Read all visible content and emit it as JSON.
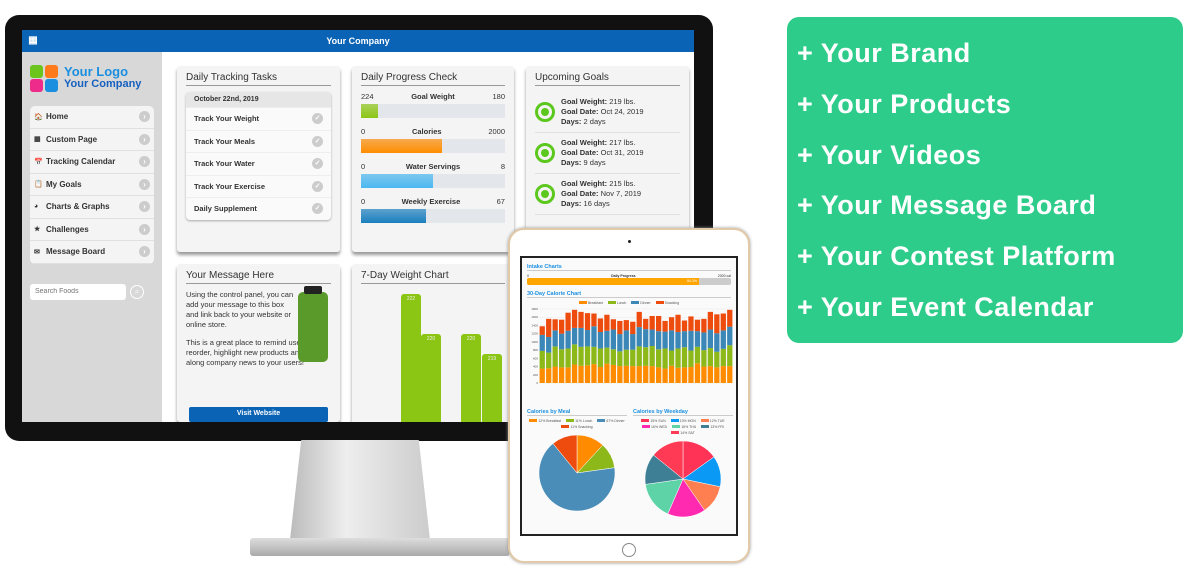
{
  "app": {
    "title": "Your Company",
    "menu_icon": "grid-icon"
  },
  "logo": {
    "line1": "Your Logo",
    "line2": "Your Company"
  },
  "sidebar": {
    "items": [
      {
        "label": "Home",
        "icon": "home-icon"
      },
      {
        "label": "Custom Page",
        "icon": "page-icon"
      },
      {
        "label": "Tracking Calendar",
        "icon": "calendar-icon"
      },
      {
        "label": "My Goals",
        "icon": "clipboard-icon"
      },
      {
        "label": "Charts & Graphs",
        "icon": "pie-chart-icon"
      },
      {
        "label": "Challenges",
        "icon": "star-icon"
      },
      {
        "label": "Message Board",
        "icon": "chat-icon"
      }
    ],
    "search_placeholder": "Search Foods"
  },
  "tasks": {
    "title": "Daily Tracking Tasks",
    "date": "October 22nd, 2019",
    "items": [
      "Track Your Weight",
      "Track Your Meals",
      "Track Your Water",
      "Track Your Exercise",
      "Daily Supplement"
    ]
  },
  "progress": {
    "title": "Daily Progress Check",
    "items": [
      {
        "label": "Goal Weight",
        "min": "224",
        "max": "180",
        "fraction": 0.12,
        "color": "#8cc614"
      },
      {
        "label": "Calories",
        "min": "0",
        "max": "2000",
        "fraction": 0.56,
        "color": "#ff8c00"
      },
      {
        "label": "Water Servings",
        "min": "0",
        "max": "8",
        "fraction": 0.5,
        "color": "#4ab8f0"
      },
      {
        "label": "Weekly Exercise",
        "min": "0",
        "max": "67",
        "fraction": 0.45,
        "color": "#1a7fbf"
      }
    ]
  },
  "goals": {
    "title": "Upcoming Goals",
    "items": [
      {
        "weight_label": "Goal Weight:",
        "weight": "219 lbs.",
        "date_label": "Goal Date:",
        "date": "Oct 24, 2019",
        "days_label": "Days:",
        "days": "2 days"
      },
      {
        "weight_label": "Goal Weight:",
        "weight": "217 lbs.",
        "date_label": "Goal Date:",
        "date": "Oct 31, 2019",
        "days_label": "Days:",
        "days": "9 days"
      },
      {
        "weight_label": "Goal Weight:",
        "weight": "215 lbs.",
        "date_label": "Goal Date:",
        "date": "Nov 7, 2019",
        "days_label": "Days:",
        "days": "16 days"
      }
    ]
  },
  "message": {
    "title": "Your Message Here",
    "p1": "Using the control panel, you can add your message to this box and link back to your website or online store.",
    "p2": "This is a great place to remind users to reorder, highlight new products and pass along company news to your users!",
    "button": "Visit Website"
  },
  "weight_chart": {
    "title": "7-Day Weight Chart",
    "bars": [
      {
        "value": 222,
        "label": "222"
      },
      {
        "value": 220,
        "label": "220"
      },
      {
        "value": 220,
        "label": "220"
      },
      {
        "value": 219,
        "label": "219"
      }
    ]
  },
  "tablet": {
    "intake_title": "Intake Charts",
    "daily_label": "Daily Progress",
    "daily_min": "0",
    "daily_max": "2000 cal",
    "daily_fraction": 0.843,
    "daily_pct": "84.3%",
    "calorie_title": "30-Day Calorie Chart",
    "meal_title": "Calories by Meal",
    "weekday_title": "Calories by Weekday"
  },
  "chart_data": [
    {
      "type": "bar",
      "stacked": true,
      "title": "30-Day Calorie Chart",
      "ylim": [
        0,
        1800
      ],
      "yticks": [
        0,
        200,
        400,
        600,
        800,
        1000,
        1200,
        1400,
        1600,
        1800
      ],
      "series": [
        {
          "name": "Breakfast",
          "color": "#ff8c00",
          "values": [
            350,
            360,
            400,
            380,
            380,
            450,
            420,
            430,
            460,
            390,
            470,
            440,
            410,
            420,
            410,
            410,
            420,
            410,
            380,
            350,
            420,
            370,
            380,
            390,
            480,
            400,
            410,
            380,
            410,
            410
          ]
        },
        {
          "name": "Lunch",
          "color": "#8cb81a",
          "values": [
            430,
            380,
            490,
            440,
            460,
            490,
            460,
            460,
            420,
            450,
            390,
            380,
            360,
            390,
            400,
            480,
            450,
            490,
            440,
            490,
            370,
            470,
            490,
            400,
            400,
            400,
            440,
            380,
            420,
            510
          ]
        },
        {
          "name": "Dinner",
          "color": "#3a87b8",
          "values": [
            390,
            380,
            390,
            380,
            430,
            400,
            460,
            400,
            500,
            400,
            410,
            480,
            420,
            470,
            380,
            470,
            440,
            400,
            440,
            410,
            490,
            400,
            390,
            480,
            380,
            430,
            450,
            450,
            450,
            450
          ]
        },
        {
          "name": "Snacking",
          "color": "#ee4b0f",
          "values": [
            210,
            440,
            270,
            340,
            440,
            440,
            390,
            410,
            310,
            330,
            390,
            250,
            320,
            250,
            300,
            370,
            250,
            330,
            370,
            260,
            320,
            420,
            260,
            350,
            280,
            330,
            430,
            460,
            410,
            410
          ]
        }
      ]
    },
    {
      "type": "pie",
      "title": "Calories by Meal",
      "labels": [
        "12% Breakfast",
        "11% Lunch",
        "67% Dinner",
        "11% Snacking"
      ],
      "values": [
        12,
        11,
        67,
        11
      ],
      "colors": [
        "#ff8c00",
        "#8cb81a",
        "#4a8db8",
        "#ee4b0f"
      ]
    },
    {
      "type": "pie",
      "title": "Calories by Weekday",
      "labels": [
        "15% SUN",
        "13% MON",
        "12% TUE",
        "16% WED",
        "16% THU",
        "13% FRI",
        "14% SAT"
      ],
      "values": [
        15,
        13,
        12,
        16,
        16,
        13,
        14
      ],
      "colors": [
        "#ff3355",
        "#0a9af5",
        "#ff7f50",
        "#ff2ab0",
        "#5fd3a8",
        "#3e7f96",
        "#ff3a55"
      ]
    }
  ],
  "promo": {
    "items": [
      "+ Your Brand",
      "+ Your Products",
      "+ Your Videos",
      "+ Your Message Board",
      "+ Your Contest Platform",
      "+ Your Event Calendar"
    ],
    "color": "#2ecc8a"
  }
}
